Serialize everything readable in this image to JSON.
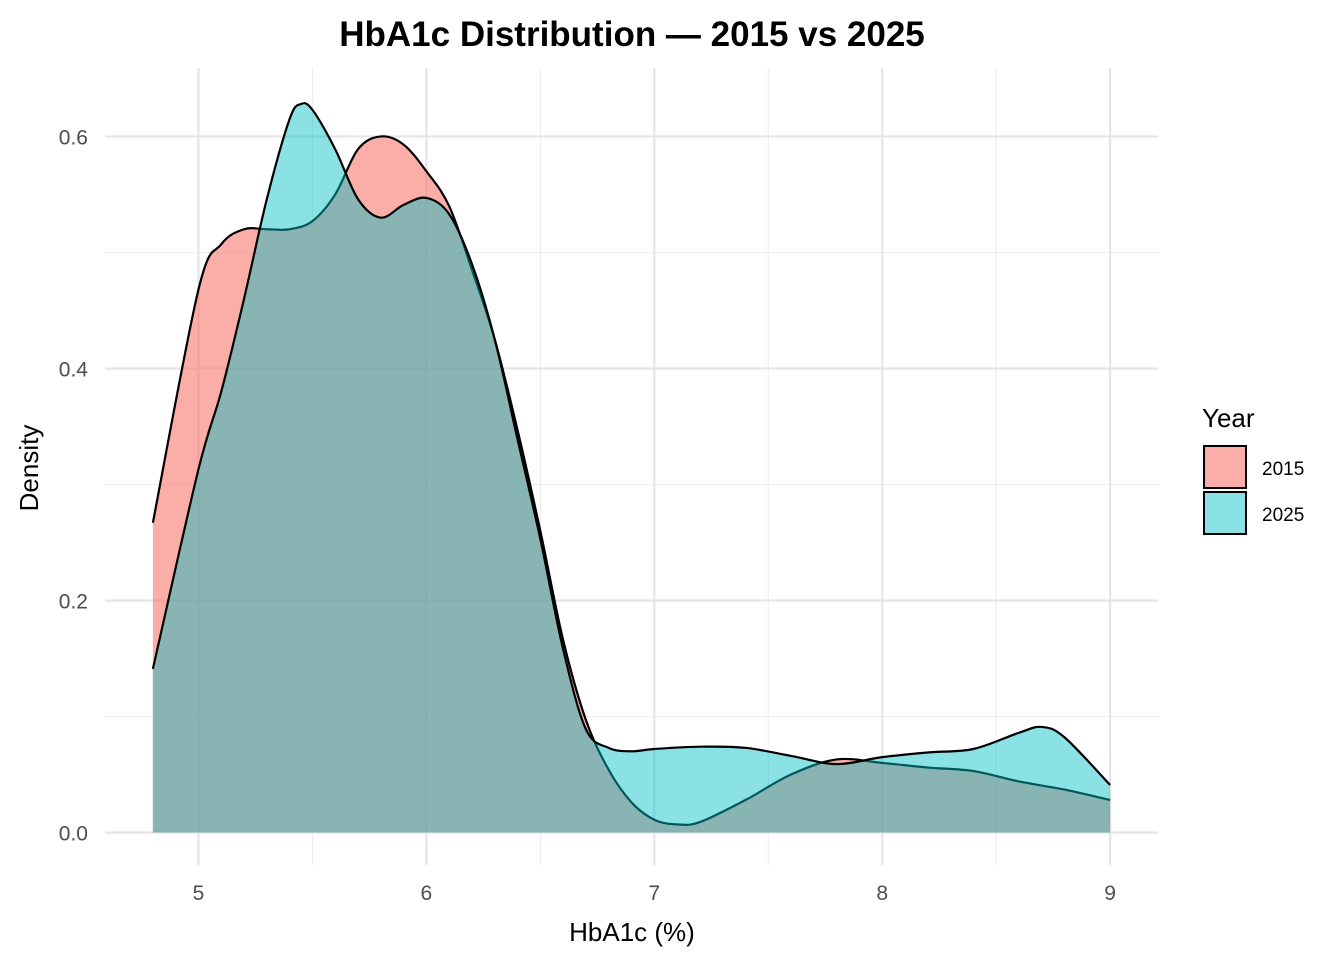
{
  "chart_data": {
    "type": "area",
    "title": "HbA1c Distribution — 2015 vs 2025",
    "xlabel": "HbA1c (%)",
    "ylabel": "Density",
    "xlim": [
      4.59,
      9.21
    ],
    "ylim": [
      -0.028,
      0.659
    ],
    "x_ticks": [
      5,
      6,
      7,
      8,
      9
    ],
    "y_ticks": [
      0.0,
      0.2,
      0.4,
      0.6
    ],
    "y_tick_labels": [
      "0.0",
      "0.2",
      "0.4",
      "0.6"
    ],
    "grid": true,
    "legend": {
      "title": "Year",
      "placement": "right"
    },
    "series": [
      {
        "name": "2015",
        "color": "#F8766D",
        "x": [
          4.8,
          5.0,
          5.1,
          5.2,
          5.3,
          5.4,
          5.5,
          5.6,
          5.7,
          5.8,
          5.9,
          6.0,
          6.1,
          6.2,
          6.3,
          6.4,
          6.5,
          6.6,
          6.7,
          6.8,
          6.9,
          7.0,
          7.1,
          7.2,
          7.4,
          7.6,
          7.8,
          8.0,
          8.2,
          8.4,
          8.6,
          8.8,
          9.0
        ],
        "y": [
          0.267,
          0.468,
          0.507,
          0.52,
          0.52,
          0.52,
          0.527,
          0.55,
          0.589,
          0.6,
          0.593,
          0.57,
          0.54,
          0.485,
          0.425,
          0.347,
          0.26,
          0.166,
          0.097,
          0.054,
          0.026,
          0.011,
          0.007,
          0.009,
          0.028,
          0.05,
          0.063,
          0.06,
          0.056,
          0.053,
          0.044,
          0.037,
          0.028
        ]
      },
      {
        "name": "2025",
        "color": "#00BFC4",
        "x": [
          4.8,
          5.0,
          5.1,
          5.2,
          5.3,
          5.4,
          5.45,
          5.5,
          5.6,
          5.7,
          5.8,
          5.9,
          6.0,
          6.1,
          6.2,
          6.3,
          6.4,
          6.5,
          6.6,
          6.7,
          6.8,
          6.9,
          7.0,
          7.2,
          7.4,
          7.6,
          7.8,
          8.0,
          8.2,
          8.4,
          8.6,
          8.7,
          8.8,
          9.0
        ],
        "y": [
          0.141,
          0.313,
          0.38,
          0.46,
          0.546,
          0.615,
          0.628,
          0.623,
          0.589,
          0.546,
          0.53,
          0.541,
          0.547,
          0.533,
          0.49,
          0.425,
          0.339,
          0.253,
          0.158,
          0.089,
          0.073,
          0.07,
          0.072,
          0.074,
          0.073,
          0.066,
          0.059,
          0.065,
          0.069,
          0.072,
          0.086,
          0.091,
          0.082,
          0.041
        ]
      }
    ]
  }
}
